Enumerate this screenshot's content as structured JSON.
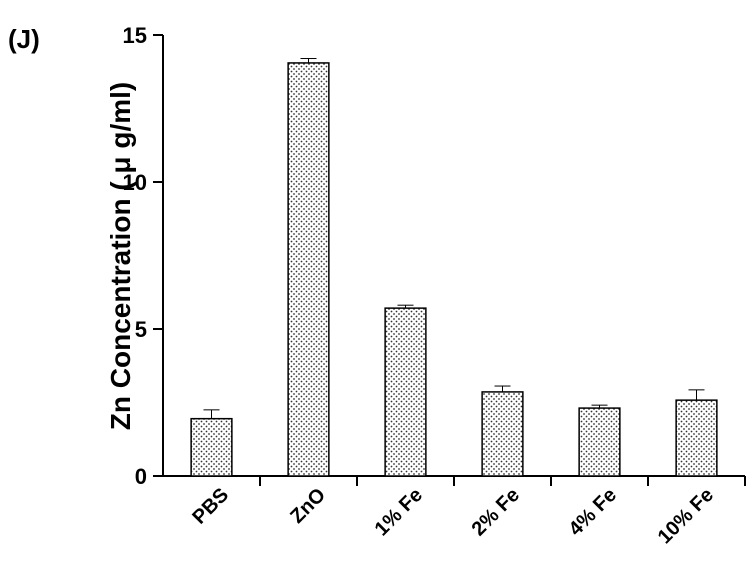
{
  "chart_data": {
    "type": "bar",
    "panel_label": "(J)",
    "ylabel": "Zn Concentration ( μ g/ml)",
    "categories": [
      "PBS",
      "ZnO",
      "1% Fe",
      "2% Fe",
      "4% Fe",
      "10% Fe"
    ],
    "values": [
      1.95,
      14.05,
      5.71,
      2.86,
      2.31,
      2.58
    ],
    "errors": [
      0.3,
      0.15,
      0.1,
      0.2,
      0.1,
      0.35
    ],
    "ylim": [
      0,
      15
    ],
    "yticks": [
      0,
      5,
      10,
      15
    ]
  }
}
